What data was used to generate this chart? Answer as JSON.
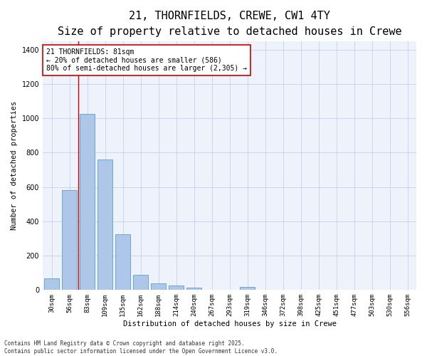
{
  "title1": "21, THORNFIELDS, CREWE, CW1 4TY",
  "title2": "Size of property relative to detached houses in Crewe",
  "xlabel": "Distribution of detached houses by size in Crewe",
  "ylabel": "Number of detached properties",
  "categories": [
    "30sqm",
    "56sqm",
    "83sqm",
    "109sqm",
    "135sqm",
    "162sqm",
    "188sqm",
    "214sqm",
    "240sqm",
    "267sqm",
    "293sqm",
    "319sqm",
    "346sqm",
    "372sqm",
    "398sqm",
    "425sqm",
    "451sqm",
    "477sqm",
    "503sqm",
    "530sqm",
    "556sqm"
  ],
  "values": [
    68,
    580,
    1025,
    760,
    325,
    90,
    38,
    25,
    15,
    0,
    0,
    18,
    0,
    0,
    0,
    0,
    0,
    0,
    0,
    0,
    0
  ],
  "bar_color": "#aec6e8",
  "bar_edge_color": "#5a9fd4",
  "background_color": "#eef2fa",
  "grid_color": "#c8d0e8",
  "vline_color": "#cc0000",
  "vline_x": 1.5,
  "annotation_text": "21 THORNFIELDS: 81sqm\n← 20% of detached houses are smaller (586)\n80% of semi-detached houses are larger (2,305) →",
  "ylim": [
    0,
    1450
  ],
  "yticks": [
    0,
    200,
    400,
    600,
    800,
    1000,
    1200,
    1400
  ],
  "footnote": "Contains HM Land Registry data © Crown copyright and database right 2025.\nContains public sector information licensed under the Open Government Licence v3.0.",
  "title_fontsize": 11,
  "subtitle_fontsize": 9,
  "axis_label_fontsize": 7.5,
  "tick_fontsize": 6.5,
  "annotation_fontsize": 7,
  "footnote_fontsize": 5.5
}
